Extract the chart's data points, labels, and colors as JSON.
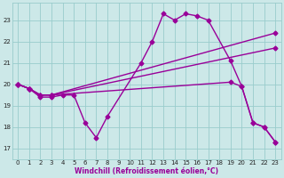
{
  "bg_color": "#cce8e8",
  "line_color": "#990099",
  "grid_color": "#99cccc",
  "xlabel": "Windchill (Refroidissement éolien,°C)",
  "xlim": [
    -0.5,
    23.5
  ],
  "ylim": [
    16.5,
    23.8
  ],
  "yticks": [
    17,
    18,
    19,
    20,
    21,
    22,
    23
  ],
  "xticks": [
    0,
    1,
    2,
    3,
    4,
    5,
    6,
    7,
    8,
    9,
    10,
    11,
    12,
    13,
    14,
    15,
    16,
    17,
    18,
    19,
    20,
    21,
    22,
    23
  ],
  "lines": [
    {
      "x": [
        0,
        1,
        2,
        3,
        4,
        5,
        6,
        7,
        8,
        11,
        12,
        13,
        14,
        15,
        16,
        17,
        19,
        20,
        21,
        22,
        23
      ],
      "y": [
        20.0,
        19.8,
        19.4,
        19.4,
        19.5,
        19.5,
        18.2,
        17.5,
        18.5,
        21.0,
        22.0,
        23.3,
        23.0,
        23.3,
        23.2,
        23.0,
        21.1,
        19.9,
        18.2,
        18.0,
        17.3
      ]
    },
    {
      "x": [
        0,
        1,
        2,
        3,
        23
      ],
      "y": [
        20.0,
        19.8,
        19.5,
        19.5,
        22.4
      ]
    },
    {
      "x": [
        0,
        1,
        2,
        3,
        23
      ],
      "y": [
        20.0,
        19.8,
        19.5,
        19.5,
        21.7
      ]
    },
    {
      "x": [
        0,
        1,
        2,
        3,
        19,
        20,
        21,
        22,
        23
      ],
      "y": [
        20.0,
        19.8,
        19.5,
        19.5,
        20.1,
        19.9,
        18.2,
        18.0,
        17.3
      ]
    }
  ],
  "marker": "D",
  "markersize": 2.5,
  "linewidth": 1.0,
  "tick_fontsize": 5.0,
  "xlabel_fontsize": 5.5
}
